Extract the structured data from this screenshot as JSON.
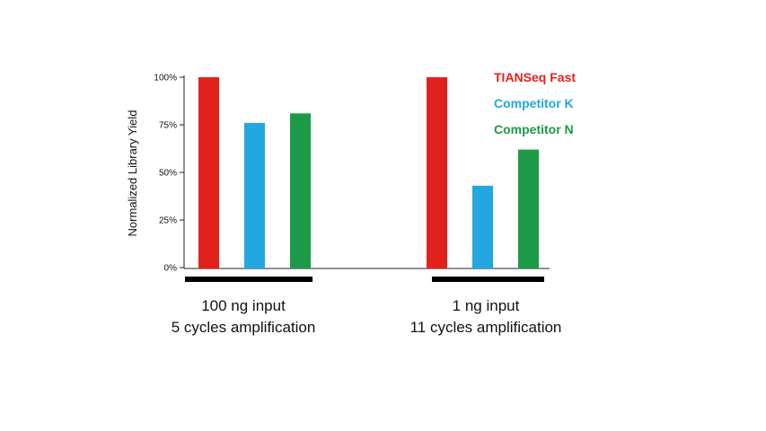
{
  "chart_data": {
    "type": "bar",
    "title": "",
    "xlabel": "",
    "ylabel": "Normalized Library Yield",
    "ylim": [
      0,
      100
    ],
    "yticks": [
      {
        "value": 0,
        "label": "0%"
      },
      {
        "value": 25,
        "label": "25%"
      },
      {
        "value": 50,
        "label": "50%"
      },
      {
        "value": 75,
        "label": "75%"
      },
      {
        "value": 100,
        "label": "100%"
      }
    ],
    "grid": false,
    "legend_position": "top-right",
    "categories": [
      {
        "line1": "100 ng input",
        "line2": "5 cycles amplification"
      },
      {
        "line1": "1 ng input",
        "line2": "11 cycles amplification"
      }
    ],
    "series": [
      {
        "name": "TIANSeq Fast",
        "color": "#e3211c",
        "values": [
          100,
          100
        ]
      },
      {
        "name": "Competitor K",
        "color": "#22a7e0",
        "values": [
          76,
          43
        ]
      },
      {
        "name": "Competitor N",
        "color": "#1d9a47",
        "values": [
          81,
          62
        ]
      }
    ]
  }
}
